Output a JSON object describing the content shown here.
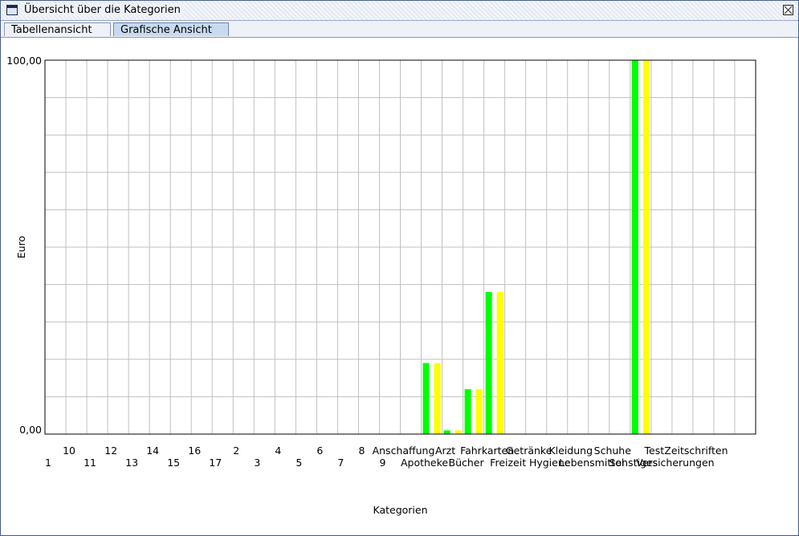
{
  "window": {
    "title": "Übersicht über die Kategorien"
  },
  "tabs": [
    {
      "label": "Tabellenansicht"
    },
    {
      "label": "Grafische Ansicht"
    }
  ],
  "chart_data": {
    "type": "bar",
    "xlabel": "Kategorien",
    "ylabel": "Euro",
    "y_tick_labels": [
      "100,00",
      "0,00"
    ],
    "ylim": [
      0,
      100
    ],
    "grid": true,
    "categories": [
      "1",
      "10",
      "11",
      "12",
      "13",
      "14",
      "15",
      "16",
      "17",
      "2",
      "3",
      "4",
      "5",
      "6",
      "7",
      "8",
      "9",
      "Anschaffung",
      "Apotheke",
      "Arzt",
      "Bücher",
      "Fahrkarten",
      "Freizeit",
      "Getränke",
      "Hygiene",
      "Kleidung",
      "Lebensmittel",
      "Schuhe",
      "Sonstiges",
      "Test",
      "Versicherungen",
      "Zeitschriften"
    ],
    "series": [
      {
        "color": "#00ff00",
        "values": [
          0,
          0,
          0,
          0,
          0,
          0,
          0,
          0,
          0,
          0,
          0,
          0,
          0,
          0,
          0,
          0,
          0,
          19,
          1,
          12,
          38,
          0,
          0,
          0,
          0,
          0,
          0,
          100,
          0,
          0,
          0,
          0
        ]
      },
      {
        "color": "#ffff00",
        "values": [
          0,
          0,
          0,
          0,
          0,
          0,
          0,
          0,
          0,
          0,
          0,
          0,
          0,
          0,
          0,
          0,
          0,
          19,
          1,
          12,
          38,
          0,
          0,
          0,
          0,
          0,
          0,
          100,
          0,
          0,
          0,
          0
        ]
      }
    ]
  }
}
